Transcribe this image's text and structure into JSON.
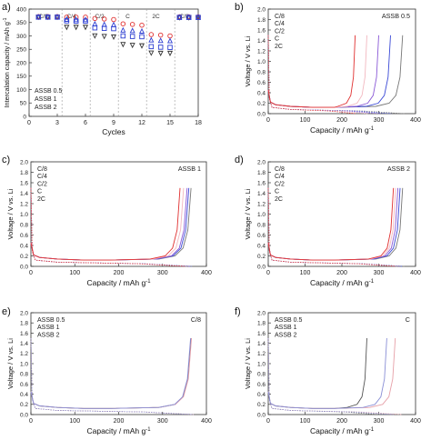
{
  "panels": [
    {
      "label": "a)"
    },
    {
      "label": "b)"
    },
    {
      "label": "c)"
    },
    {
      "label": "d)"
    },
    {
      "label": "e)"
    },
    {
      "label": "f)"
    }
  ],
  "chart_data": [
    {
      "type": "scatter",
      "panel": "a)",
      "xlabel": "Cycles",
      "ylabel": "Intercalation capacity / mAh g-1",
      "xlim": [
        0,
        18
      ],
      "ylim": [
        0,
        400
      ],
      "xticks": [
        0,
        3,
        6,
        9,
        12,
        15,
        18
      ],
      "yticks": [
        0,
        50,
        100,
        150,
        200,
        250,
        300,
        350,
        400
      ],
      "rate_labels": [
        {
          "text": "C/8",
          "x": 1.5
        },
        {
          "text": "C/4",
          "x": 4.5
        },
        {
          "text": "C/2",
          "x": 7.5
        },
        {
          "text": "C",
          "x": 10.5
        },
        {
          "text": "2C",
          "x": 13.5
        },
        {
          "text": "C/8",
          "x": 16.5
        }
      ],
      "rate_dividers": [
        3.5,
        6.5,
        9.5,
        12.5,
        15.5
      ],
      "legend": [
        "ASSB 0.5",
        "ASSB 1",
        "ASSB 2"
      ],
      "legend_position": "bottom-left",
      "grid": false,
      "series": [
        {
          "name": "ASSB 0.5",
          "color": "#333333",
          "marker": "triangle-down",
          "x": [
            1,
            2,
            3,
            4,
            5,
            6,
            7,
            8,
            9,
            10,
            11,
            12,
            13,
            14,
            15,
            16,
            17,
            18
          ],
          "values": [
            370,
            370,
            370,
            332,
            332,
            332,
            300,
            298,
            296,
            268,
            265,
            263,
            236,
            235,
            235,
            368,
            368,
            368
          ]
        },
        {
          "name": "ASSB 1",
          "color": "#e03030",
          "marker": "circle",
          "x": [
            1,
            2,
            3,
            4,
            5,
            6,
            7,
            8,
            9,
            10,
            11,
            12,
            13,
            14,
            15,
            16,
            17,
            18
          ],
          "values": [
            372,
            372,
            372,
            370,
            370,
            370,
            365,
            363,
            361,
            345,
            343,
            340,
            305,
            303,
            300,
            371,
            371,
            371
          ]
        },
        {
          "name": "ASSB 2",
          "color": "#2d3fd1",
          "marker": "triangle-up",
          "x": [
            1,
            2,
            3,
            4,
            5,
            6,
            7,
            8,
            9,
            10,
            11,
            12,
            13,
            14,
            15,
            16,
            17,
            18
          ],
          "values": [
            371,
            371,
            371,
            362,
            361,
            361,
            345,
            343,
            342,
            322,
            320,
            318,
            285,
            283,
            282,
            370,
            370,
            370
          ]
        },
        {
          "name": "",
          "color": "#2d3fd1",
          "marker": "square",
          "x": [
            1,
            2,
            3,
            4,
            5,
            6,
            7,
            8,
            9,
            10,
            11,
            12,
            13,
            14,
            15,
            16,
            17,
            18
          ],
          "values": [
            370,
            370,
            370,
            356,
            355,
            355,
            330,
            328,
            327,
            300,
            298,
            297,
            260,
            258,
            257,
            369,
            369,
            369
          ]
        }
      ]
    },
    {
      "type": "line",
      "panel": "b)",
      "xlabel": "Capacity / mAh g-1",
      "ylabel": "Voltage / V vs. Li",
      "xlim": [
        0,
        400
      ],
      "ylim": [
        0,
        2.0
      ],
      "xticks": [
        0,
        100,
        200,
        300,
        400
      ],
      "yticks": [
        0,
        0.2,
        0.4,
        0.6,
        0.8,
        1.0,
        1.2,
        1.4,
        1.6,
        1.8,
        2.0
      ],
      "title": "ASSB 0.5",
      "legend": [
        {
          "text": "C/8",
          "color": "#111111"
        },
        {
          "text": "C/4",
          "color": "#3a49d6"
        },
        {
          "text": "C/2",
          "color": "#8a59d6"
        },
        {
          "text": "C",
          "color": "#f2b8c0"
        },
        {
          "text": "2C",
          "color": "#e03030"
        }
      ],
      "series": [
        {
          "name": "C/8",
          "color": "#777777",
          "x_end": 365,
          "x_lith": 370
        },
        {
          "name": "C/4",
          "color": "#3a49d6",
          "x_end": 332,
          "x_lith": 334
        },
        {
          "name": "C/2",
          "color": "#8a59d6",
          "x_end": 300,
          "x_lith": 302
        },
        {
          "name": "C",
          "color": "#f2b8c0",
          "x_end": 268,
          "x_lith": 270
        },
        {
          "name": "2C",
          "color": "#e03030",
          "x_end": 236,
          "x_lith": 238
        }
      ]
    },
    {
      "type": "line",
      "panel": "c)",
      "xlabel": "Capacity / mAh g-1",
      "ylabel": "Voltage / V vs. Li",
      "xlim": [
        0,
        400
      ],
      "ylim": [
        0,
        2.0
      ],
      "xticks": [
        0,
        100,
        200,
        300,
        400
      ],
      "yticks": [
        0,
        0.2,
        0.4,
        0.6,
        0.8,
        1.0,
        1.2,
        1.4,
        1.6,
        1.8,
        2.0
      ],
      "title": "ASSB 1",
      "legend": [
        {
          "text": "C/8",
          "color": "#111111"
        },
        {
          "text": "C/4",
          "color": "#3a49d6"
        },
        {
          "text": "C/2",
          "color": "#8a59d6"
        },
        {
          "text": "C",
          "color": "#f2b8c0"
        },
        {
          "text": "2C",
          "color": "#e03030"
        }
      ],
      "series": [
        {
          "name": "C/8",
          "color": "#777777",
          "x_end": 365,
          "x_lith": 370
        },
        {
          "name": "C/4",
          "color": "#3a49d6",
          "x_end": 360,
          "x_lith": 366
        },
        {
          "name": "C/2",
          "color": "#8a59d6",
          "x_end": 356,
          "x_lith": 362
        },
        {
          "name": "C",
          "color": "#f2b8c0",
          "x_end": 348,
          "x_lith": 355
        },
        {
          "name": "2C",
          "color": "#e03030",
          "x_end": 340,
          "x_lith": 350
        }
      ]
    },
    {
      "type": "line",
      "panel": "d)",
      "xlabel": "Capacity / mAh g-1",
      "ylabel": "Voltage / V vs. Li",
      "xlim": [
        0,
        400
      ],
      "ylim": [
        0,
        2.0
      ],
      "xticks": [
        0,
        100,
        200,
        300,
        400
      ],
      "yticks": [
        0,
        0.2,
        0.4,
        0.6,
        0.8,
        1.0,
        1.2,
        1.4,
        1.6,
        1.8,
        2.0
      ],
      "title": "ASSB 2",
      "legend": [
        {
          "text": "C/8",
          "color": "#111111"
        },
        {
          "text": "C/4",
          "color": "#3a49d6"
        },
        {
          "text": "C/2",
          "color": "#8a59d6"
        },
        {
          "text": "C",
          "color": "#f2b8c0"
        },
        {
          "text": "2C",
          "color": "#e03030"
        }
      ],
      "series": [
        {
          "name": "C/8",
          "color": "#777777",
          "x_end": 365,
          "x_lith": 370
        },
        {
          "name": "C/4",
          "color": "#3a49d6",
          "x_end": 358,
          "x_lith": 364
        },
        {
          "name": "C/2",
          "color": "#8a59d6",
          "x_end": 352,
          "x_lith": 358
        },
        {
          "name": "C",
          "color": "#f2b8c0",
          "x_end": 346,
          "x_lith": 352
        },
        {
          "name": "2C",
          "color": "#e03030",
          "x_end": 340,
          "x_lith": 346
        }
      ]
    },
    {
      "type": "line",
      "panel": "e)",
      "xlabel": "Capacity / mAh g-1",
      "ylabel": "Voltage / V vs. Li",
      "xlim": [
        0,
        400
      ],
      "ylim": [
        0,
        2.0
      ],
      "xticks": [
        0,
        100,
        200,
        300,
        400
      ],
      "yticks": [
        0,
        0.2,
        0.4,
        0.6,
        0.8,
        1.0,
        1.2,
        1.4,
        1.6,
        1.8,
        2.0
      ],
      "title": "C/8",
      "legend": [
        {
          "text": "ASSB 0.5",
          "color": "#111111"
        },
        {
          "text": "ASSB 1",
          "color": "#e03030"
        },
        {
          "text": "ASSB 2",
          "color": "#2d3fd1"
        }
      ],
      "series": [
        {
          "name": "ASSB 0.5",
          "color": "#555555",
          "x_end": 365,
          "x_lith": 370
        },
        {
          "name": "ASSB 1",
          "color": "#e6a0a8",
          "x_end": 366,
          "x_lith": 371
        },
        {
          "name": "ASSB 2",
          "color": "#8a8fd6",
          "x_end": 364,
          "x_lith": 370
        }
      ]
    },
    {
      "type": "line",
      "panel": "f)",
      "xlabel": "Capacity / mAh g-1",
      "ylabel": "Voltage / V vs. Li",
      "xlim": [
        0,
        400
      ],
      "ylim": [
        0,
        2.0
      ],
      "xticks": [
        0,
        100,
        200,
        300,
        400
      ],
      "yticks": [
        0,
        0.2,
        0.4,
        0.6,
        0.8,
        1.0,
        1.2,
        1.4,
        1.6,
        1.8,
        2.0
      ],
      "title": "C",
      "legend": [
        {
          "text": "ASSB 0.5",
          "color": "#111111"
        },
        {
          "text": "ASSB 1",
          "color": "#e03030"
        },
        {
          "text": "ASSB 2",
          "color": "#2d3fd1"
        }
      ],
      "series": [
        {
          "name": "ASSB 0.5",
          "color": "#555555",
          "x_end": 268,
          "x_lith": 300
        },
        {
          "name": "ASSB 1",
          "color": "#e6a0a8",
          "x_end": 345,
          "x_lith": 362
        },
        {
          "name": "ASSB 2",
          "color": "#8a8fd6",
          "x_end": 322,
          "x_lith": 340
        }
      ]
    }
  ]
}
